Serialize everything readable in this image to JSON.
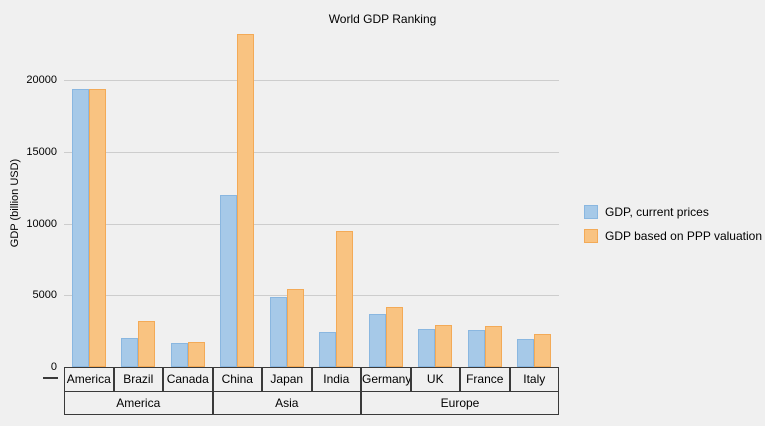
{
  "title": "World GDP Ranking",
  "colors": {
    "background": "#f0f0f0",
    "gridline": "#cdcdcd",
    "axis_table_border": "#3a3a3a",
    "text": "#000000",
    "series_blue_fill": "#a6c9e8",
    "series_blue_border": "#8ab7e0",
    "series_orange_fill": "#f9c381",
    "series_orange_border": "#f3aa57"
  },
  "chart_data": {
    "type": "bar",
    "title": "World GDP Ranking",
    "xlabel": "",
    "ylabel": "GDP (billion USD)",
    "ylim": [
      0,
      23500
    ],
    "yticks": [
      0,
      5000,
      10000,
      15000,
      20000
    ],
    "grid": true,
    "legend_position": "right",
    "categories": [
      "America",
      "Brazil",
      "Canada",
      "China",
      "Japan",
      "India",
      "Germany",
      "UK",
      "France",
      "Italy"
    ],
    "category_groups": [
      {
        "label": "America",
        "span": 3
      },
      {
        "label": "Asia",
        "span": 3
      },
      {
        "label": "Europe",
        "span": 4
      }
    ],
    "series": [
      {
        "name": "GDP, current prices",
        "color": "#a6c9e8",
        "border_color": "#8ab7e0",
        "values": [
          19390,
          2055,
          1650,
          12015,
          4872,
          2439,
          3677,
          2622,
          2582,
          1935
        ]
      },
      {
        "name": "GDP based on PPP valuation",
        "color": "#f9c381",
        "border_color": "#f3aa57",
        "values": [
          19390,
          3240,
          1770,
          23190,
          5429,
          9459,
          4171,
          2914,
          2836,
          2311
        ]
      }
    ]
  }
}
